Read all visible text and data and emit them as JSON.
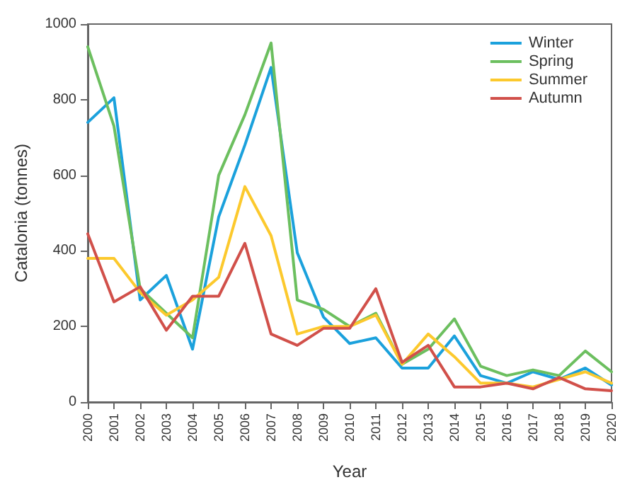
{
  "chart_data": {
    "type": "line",
    "xlabel": "Year",
    "ylabel": "Catalonia (tonnes)",
    "categories": [
      "2000",
      "2001",
      "2002",
      "2003",
      "2004",
      "2005",
      "2006",
      "2007",
      "2008",
      "2009",
      "2010",
      "2011",
      "2012",
      "2013",
      "2014",
      "2015",
      "2016",
      "2017",
      "2018",
      "2019",
      "2020"
    ],
    "series": [
      {
        "name": "Winter",
        "color": "#1ba1dc",
        "values": [
          740,
          805,
          270,
          335,
          140,
          490,
          680,
          885,
          395,
          225,
          155,
          170,
          90,
          90,
          175,
          70,
          50,
          80,
          60,
          90,
          45
        ]
      },
      {
        "name": "Spring",
        "color": "#6cbf5f",
        "values": [
          940,
          730,
          300,
          235,
          170,
          600,
          760,
          950,
          270,
          245,
          200,
          235,
          100,
          140,
          220,
          95,
          70,
          85,
          70,
          135,
          80
        ]
      },
      {
        "name": "Summer",
        "color": "#fcc92d",
        "values": [
          380,
          380,
          290,
          230,
          270,
          330,
          570,
          440,
          180,
          200,
          200,
          230,
          100,
          180,
          120,
          50,
          50,
          40,
          60,
          80,
          50
        ]
      },
      {
        "name": "Autumn",
        "color": "#d1504a",
        "values": [
          445,
          265,
          305,
          190,
          280,
          280,
          420,
          180,
          150,
          195,
          195,
          300,
          105,
          150,
          40,
          40,
          50,
          35,
          65,
          35,
          30
        ]
      }
    ],
    "ylim": [
      0,
      1000
    ],
    "yticks": [
      0,
      200,
      400,
      600,
      800,
      1000
    ],
    "grid": false,
    "legend": "top right",
    "marker": "none",
    "line_style": "solid"
  }
}
